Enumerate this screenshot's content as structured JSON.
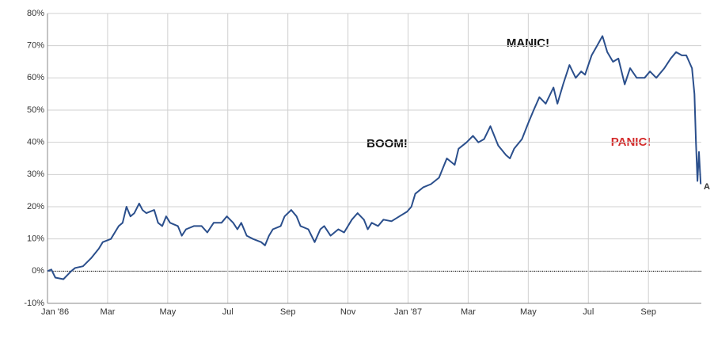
{
  "chart_data": {
    "type": "line",
    "annotations": [
      "BOOM!",
      "MANIC!",
      "PANIC!",
      "A"
    ],
    "x": [
      0,
      0.13,
      0.26,
      0.53,
      0.79,
      0.92,
      1.18,
      1.45,
      1.71,
      1.84,
      2.11,
      2.37,
      2.5,
      2.63,
      2.76,
      2.89,
      3.05,
      3.16,
      3.29,
      3.55,
      3.68,
      3.82,
      3.95,
      4.08,
      4.34,
      4.47,
      4.61,
      4.87,
      5.13,
      5.32,
      5.53,
      5.79,
      5.97,
      6.18,
      6.32,
      6.45,
      6.63,
      6.84,
      7.11,
      7.24,
      7.37,
      7.5,
      7.76,
      7.89,
      8.11,
      8.29,
      8.42,
      8.68,
      8.89,
      9.08,
      9.21,
      9.42,
      9.68,
      9.87,
      10.13,
      10.32,
      10.53,
      10.66,
      10.79,
      11,
      11.18,
      11.45,
      11.71,
      11.97,
      12.11,
      12.24,
      12.5,
      12.76,
      13.03,
      13.29,
      13.55,
      13.68,
      13.95,
      14.16,
      14.34,
      14.53,
      14.74,
      15,
      15.26,
      15.39,
      15.53,
      15.79,
      16,
      16.18,
      16.37,
      16.58,
      16.84,
      16.97,
      17.16,
      17.37,
      17.58,
      17.76,
      17.89,
      18.11,
      18.29,
      18.47,
      18.63,
      18.82,
      19,
      19.21,
      19.39,
      19.61,
      19.87,
      20.05,
      20.26,
      20.53,
      20.74,
      20.92,
      21.11,
      21.26,
      21.45,
      21.53,
      21.58,
      21.63,
      21.68,
      21.74
    ],
    "series": [
      {
        "name": "Return",
        "color": "#2b4f8c",
        "values": [
          0,
          0.5,
          -2,
          -2.5,
          0,
          1,
          1.5,
          4,
          7,
          9,
          10,
          14,
          15,
          20,
          17,
          18,
          21,
          19,
          18,
          19,
          15,
          14,
          17,
          15,
          14,
          11,
          13,
          14,
          14,
          12,
          15,
          15,
          17,
          15,
          13,
          15,
          11,
          10,
          9,
          8,
          11,
          13,
          14,
          17,
          19,
          17,
          14,
          13,
          9,
          13,
          14,
          11,
          13,
          12,
          16,
          18,
          16,
          13,
          15,
          14,
          16,
          15.5,
          17,
          18.5,
          20,
          24,
          26,
          27,
          29,
          35,
          33,
          38,
          40,
          42,
          40,
          41,
          45,
          39,
          36,
          35,
          38,
          41,
          46,
          50,
          54,
          52,
          57,
          52,
          58,
          64,
          60,
          62,
          61,
          67,
          70,
          73,
          68,
          65,
          66,
          58,
          63,
          60,
          60,
          62,
          60,
          63,
          66,
          68,
          67,
          67,
          63,
          55,
          40,
          28,
          37,
          27
        ]
      }
    ],
    "xlim": [
      0,
      21.76
    ],
    "xticks": [
      {
        "value": 0,
        "label": "Jan '86"
      },
      {
        "value": 2,
        "label": "Mar"
      },
      {
        "value": 4,
        "label": "May"
      },
      {
        "value": 6,
        "label": "Jul"
      },
      {
        "value": 8,
        "label": "Sep"
      },
      {
        "value": 10,
        "label": "Nov"
      },
      {
        "value": 12,
        "label": "Jan '87"
      },
      {
        "value": 14,
        "label": "Mar"
      },
      {
        "value": 16,
        "label": "May"
      },
      {
        "value": 18,
        "label": "Jul"
      },
      {
        "value": 20,
        "label": "Sep"
      }
    ],
    "ylim": [
      -10,
      80
    ],
    "yticks": [
      {
        "value": -10,
        "label": "-10%"
      },
      {
        "value": 0,
        "label": "0%"
      },
      {
        "value": 10,
        "label": "10%"
      },
      {
        "value": 20,
        "label": "20%"
      },
      {
        "value": 30,
        "label": "30%"
      },
      {
        "value": 40,
        "label": "40%"
      },
      {
        "value": 50,
        "label": "50%"
      },
      {
        "value": 60,
        "label": "60%"
      },
      {
        "value": 70,
        "label": "70%"
      },
      {
        "value": 80,
        "label": "80%"
      }
    ],
    "grid": true
  }
}
